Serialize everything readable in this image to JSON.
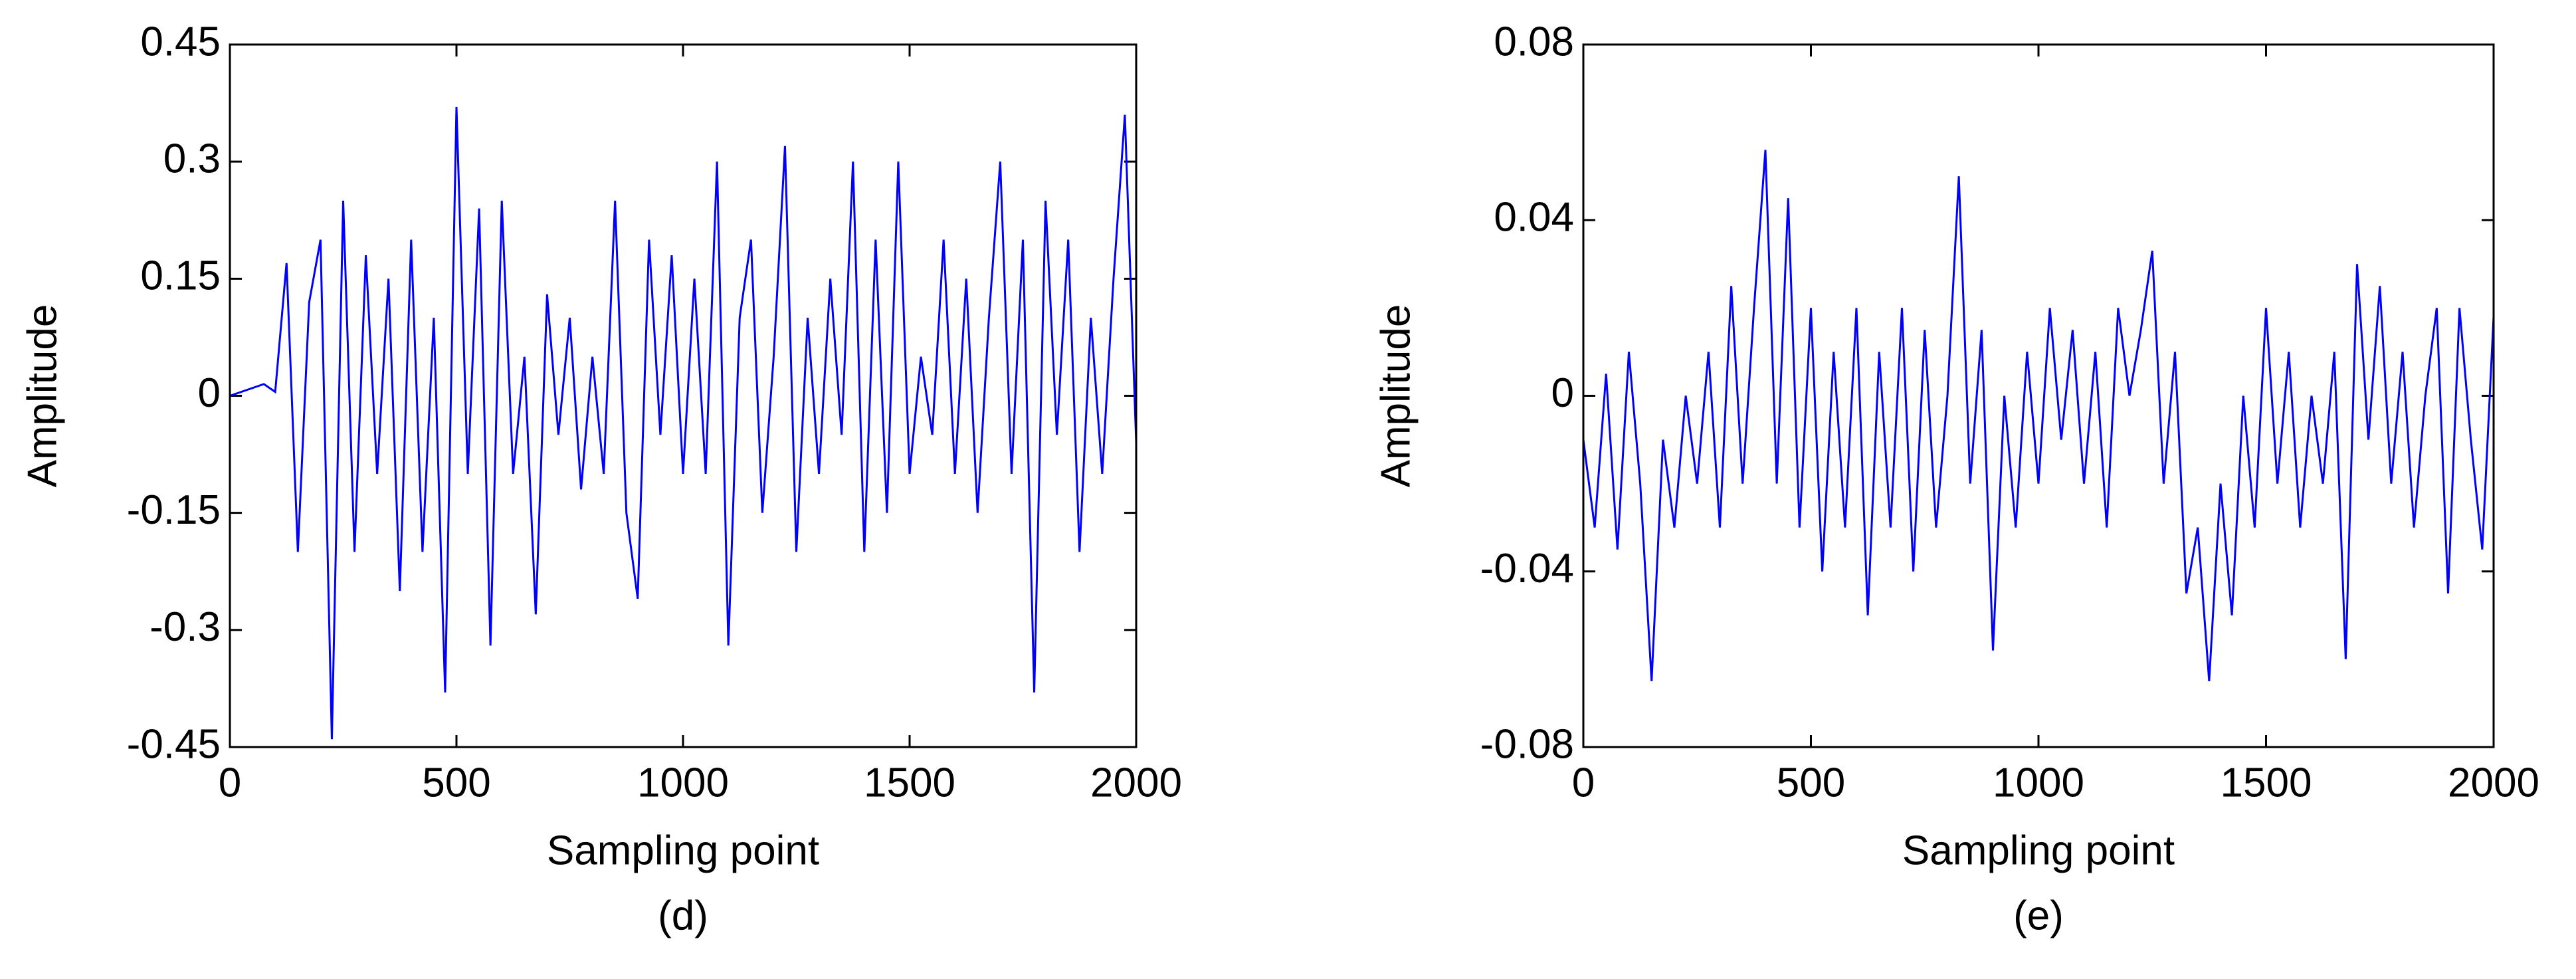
{
  "chart_data": [
    {
      "type": "line",
      "xlabel": "Sampling point",
      "ylabel": "Amplitude",
      "caption": "(d)",
      "xlim": [
        0,
        2000
      ],
      "xticks": [
        0,
        500,
        1000,
        1500,
        2000
      ],
      "ylim": [
        -0.45,
        0.45
      ],
      "yticks": [
        -0.45,
        -0.3,
        -0.15,
        0,
        0.15,
        0.3,
        0.45
      ],
      "x": [
        0,
        25,
        50,
        75,
        100,
        125,
        150,
        175,
        200,
        225,
        250,
        275,
        300,
        325,
        350,
        375,
        400,
        425,
        450,
        475,
        500,
        525,
        550,
        575,
        600,
        625,
        650,
        675,
        700,
        725,
        750,
        775,
        800,
        825,
        850,
        875,
        900,
        925,
        950,
        975,
        1000,
        1025,
        1050,
        1075,
        1100,
        1125,
        1150,
        1175,
        1200,
        1225,
        1250,
        1275,
        1300,
        1325,
        1350,
        1375,
        1400,
        1425,
        1450,
        1475,
        1500,
        1525,
        1550,
        1575,
        1600,
        1625,
        1650,
        1675,
        1700,
        1725,
        1750,
        1775,
        1800,
        1825,
        1850,
        1875,
        1900,
        1925,
        1950,
        1975,
        2000
      ],
      "series": [
        {
          "color": "#0000ff",
          "values": [
            0,
            0.005,
            0.01,
            0.015,
            0.005,
            0.17,
            -0.2,
            0.12,
            0.2,
            -0.44,
            0.25,
            -0.2,
            0.18,
            -0.1,
            0.15,
            -0.25,
            0.2,
            -0.2,
            0.1,
            -0.38,
            0.37,
            -0.1,
            0.24,
            -0.32,
            0.25,
            -0.1,
            0.05,
            -0.28,
            0.13,
            -0.05,
            0.1,
            -0.12,
            0.05,
            -0.1,
            0.25,
            -0.15,
            -0.26,
            0.2,
            -0.05,
            0.18,
            -0.1,
            0.15,
            -0.1,
            0.3,
            -0.32,
            0.1,
            0.2,
            -0.15,
            0.05,
            0.32,
            -0.2,
            0.1,
            -0.1,
            0.15,
            -0.05,
            0.3,
            -0.2,
            0.2,
            -0.15,
            0.3,
            -0.1,
            0.05,
            -0.05,
            0.2,
            -0.1,
            0.15,
            -0.15,
            0.1,
            0.3,
            -0.1,
            0.2,
            -0.38,
            0.25,
            -0.05,
            0.2,
            -0.2,
            0.1,
            -0.1,
            0.15,
            0.36,
            -0.06
          ]
        }
      ]
    },
    {
      "type": "line",
      "xlabel": "Sampling point",
      "ylabel": "Amplitude",
      "caption": "(e)",
      "xlim": [
        0,
        2000
      ],
      "xticks": [
        0,
        500,
        1000,
        1500,
        2000
      ],
      "ylim": [
        -0.08,
        0.08
      ],
      "yticks": [
        -0.08,
        -0.04,
        0,
        0.04,
        0.08
      ],
      "x": [
        0,
        25,
        50,
        75,
        100,
        125,
        150,
        175,
        200,
        225,
        250,
        275,
        300,
        325,
        350,
        375,
        400,
        425,
        450,
        475,
        500,
        525,
        550,
        575,
        600,
        625,
        650,
        675,
        700,
        725,
        750,
        775,
        800,
        825,
        850,
        875,
        900,
        925,
        950,
        975,
        1000,
        1025,
        1050,
        1075,
        1100,
        1125,
        1150,
        1175,
        1200,
        1225,
        1250,
        1275,
        1300,
        1325,
        1350,
        1375,
        1400,
        1425,
        1450,
        1475,
        1500,
        1525,
        1550,
        1575,
        1600,
        1625,
        1650,
        1675,
        1700,
        1725,
        1750,
        1775,
        1800,
        1825,
        1850,
        1875,
        1900,
        1925,
        1950,
        1975,
        2000
      ],
      "series": [
        {
          "color": "#0000ff",
          "values": [
            -0.01,
            -0.03,
            0.005,
            -0.035,
            0.01,
            -0.02,
            -0.065,
            -0.01,
            -0.03,
            0,
            -0.02,
            0.01,
            -0.03,
            0.025,
            -0.02,
            0.02,
            0.056,
            -0.02,
            0.045,
            -0.03,
            0.02,
            -0.04,
            0.01,
            -0.03,
            0.02,
            -0.05,
            0.01,
            -0.03,
            0.02,
            -0.04,
            0.015,
            -0.03,
            0,
            0.05,
            -0.02,
            0.015,
            -0.058,
            0,
            -0.03,
            0.01,
            -0.02,
            0.02,
            -0.01,
            0.015,
            -0.02,
            0.01,
            -0.03,
            0.02,
            0,
            0.015,
            0.033,
            -0.02,
            0.01,
            -0.045,
            -0.03,
            -0.065,
            -0.02,
            -0.05,
            0,
            -0.03,
            0.02,
            -0.02,
            0.01,
            -0.03,
            0,
            -0.02,
            0.01,
            -0.06,
            0.03,
            -0.01,
            0.025,
            -0.02,
            0.01,
            -0.03,
            0,
            0.02,
            -0.045,
            0.02,
            -0.01,
            -0.035,
            0.018
          ]
        }
      ]
    }
  ]
}
